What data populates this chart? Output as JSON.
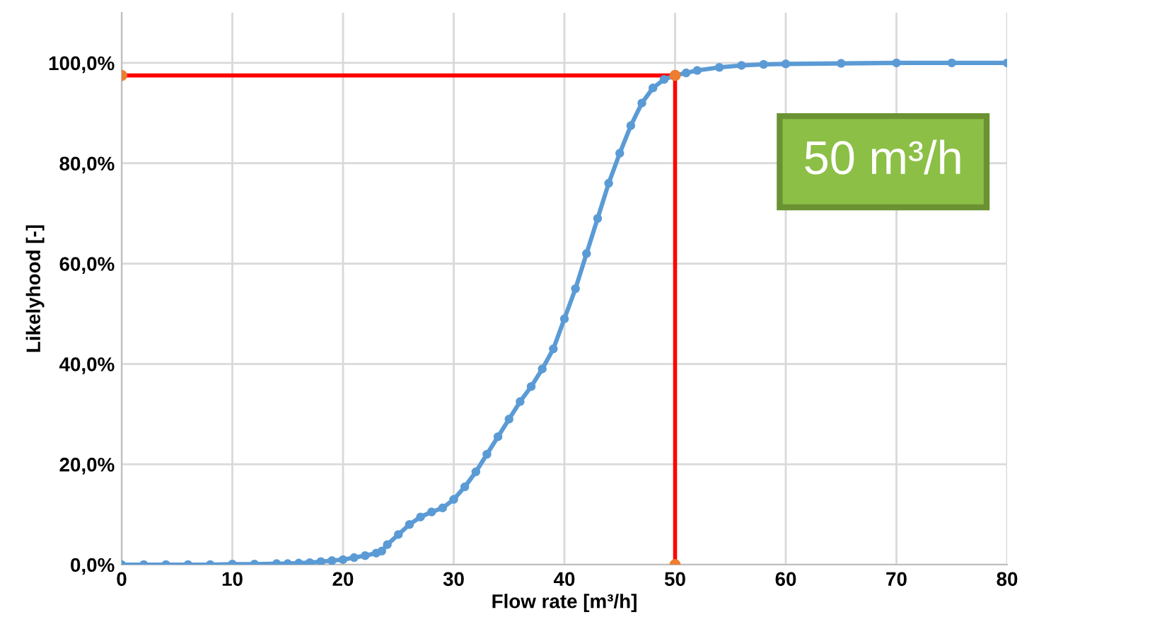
{
  "chart_data": {
    "type": "line",
    "xlabel": "Flow rate [m³/h]",
    "ylabel": "Likelyhood [-]",
    "xlim": [
      0,
      80
    ],
    "ylim": [
      0,
      110
    ],
    "xticks": [
      0,
      10,
      20,
      30,
      40,
      50,
      60,
      70,
      80
    ],
    "yticks": [
      {
        "value": 0,
        "label": "0,0%"
      },
      {
        "value": 20,
        "label": "20,0%"
      },
      {
        "value": 40,
        "label": "40,0%"
      },
      {
        "value": 60,
        "label": "60,0%"
      },
      {
        "value": 80,
        "label": "80,0%"
      },
      {
        "value": 100,
        "label": "100,0%"
      }
    ],
    "grid": true,
    "legend": false,
    "annotations": [
      "50 m³/h"
    ],
    "series": [
      {
        "color": "#5b9bd5",
        "marker": "circle",
        "x": [
          0,
          2,
          4,
          6,
          8,
          10,
          12,
          14,
          15,
          16,
          17,
          18,
          19,
          20,
          21,
          22,
          23,
          23.5,
          24,
          25,
          26,
          27,
          28,
          29,
          30,
          31,
          32,
          33,
          34,
          35,
          36,
          37,
          38,
          39,
          40,
          41,
          42,
          43,
          44,
          45,
          46,
          47,
          48,
          49,
          50,
          51,
          52,
          54,
          56,
          58,
          60,
          65,
          70,
          75,
          80
        ],
        "values": [
          0,
          0,
          0,
          0,
          0,
          0.1,
          0.1,
          0.2,
          0.2,
          0.3,
          0.4,
          0.6,
          0.8,
          1.0,
          1.4,
          1.8,
          2.3,
          2.7,
          4,
          6,
          8,
          9.5,
          10.5,
          11.3,
          13,
          15.5,
          18.5,
          22,
          25.5,
          29,
          32.5,
          35.5,
          39,
          43,
          49,
          55,
          62,
          69,
          76,
          82,
          87.5,
          92,
          95,
          96.7,
          97.5,
          98,
          98.5,
          99.1,
          99.5,
          99.7,
          99.8,
          99.9,
          100,
          100,
          100
        ]
      },
      {
        "type": "line",
        "color": "#ff0000",
        "marker": "none",
        "x": [
          0,
          50,
          50
        ],
        "values": [
          97.5,
          97.5,
          0
        ]
      },
      {
        "type": "scatter",
        "color": "#ed7d31",
        "marker": "circle",
        "x": [
          0,
          50,
          50
        ],
        "values": [
          97.5,
          97.5,
          0
        ]
      }
    ]
  }
}
